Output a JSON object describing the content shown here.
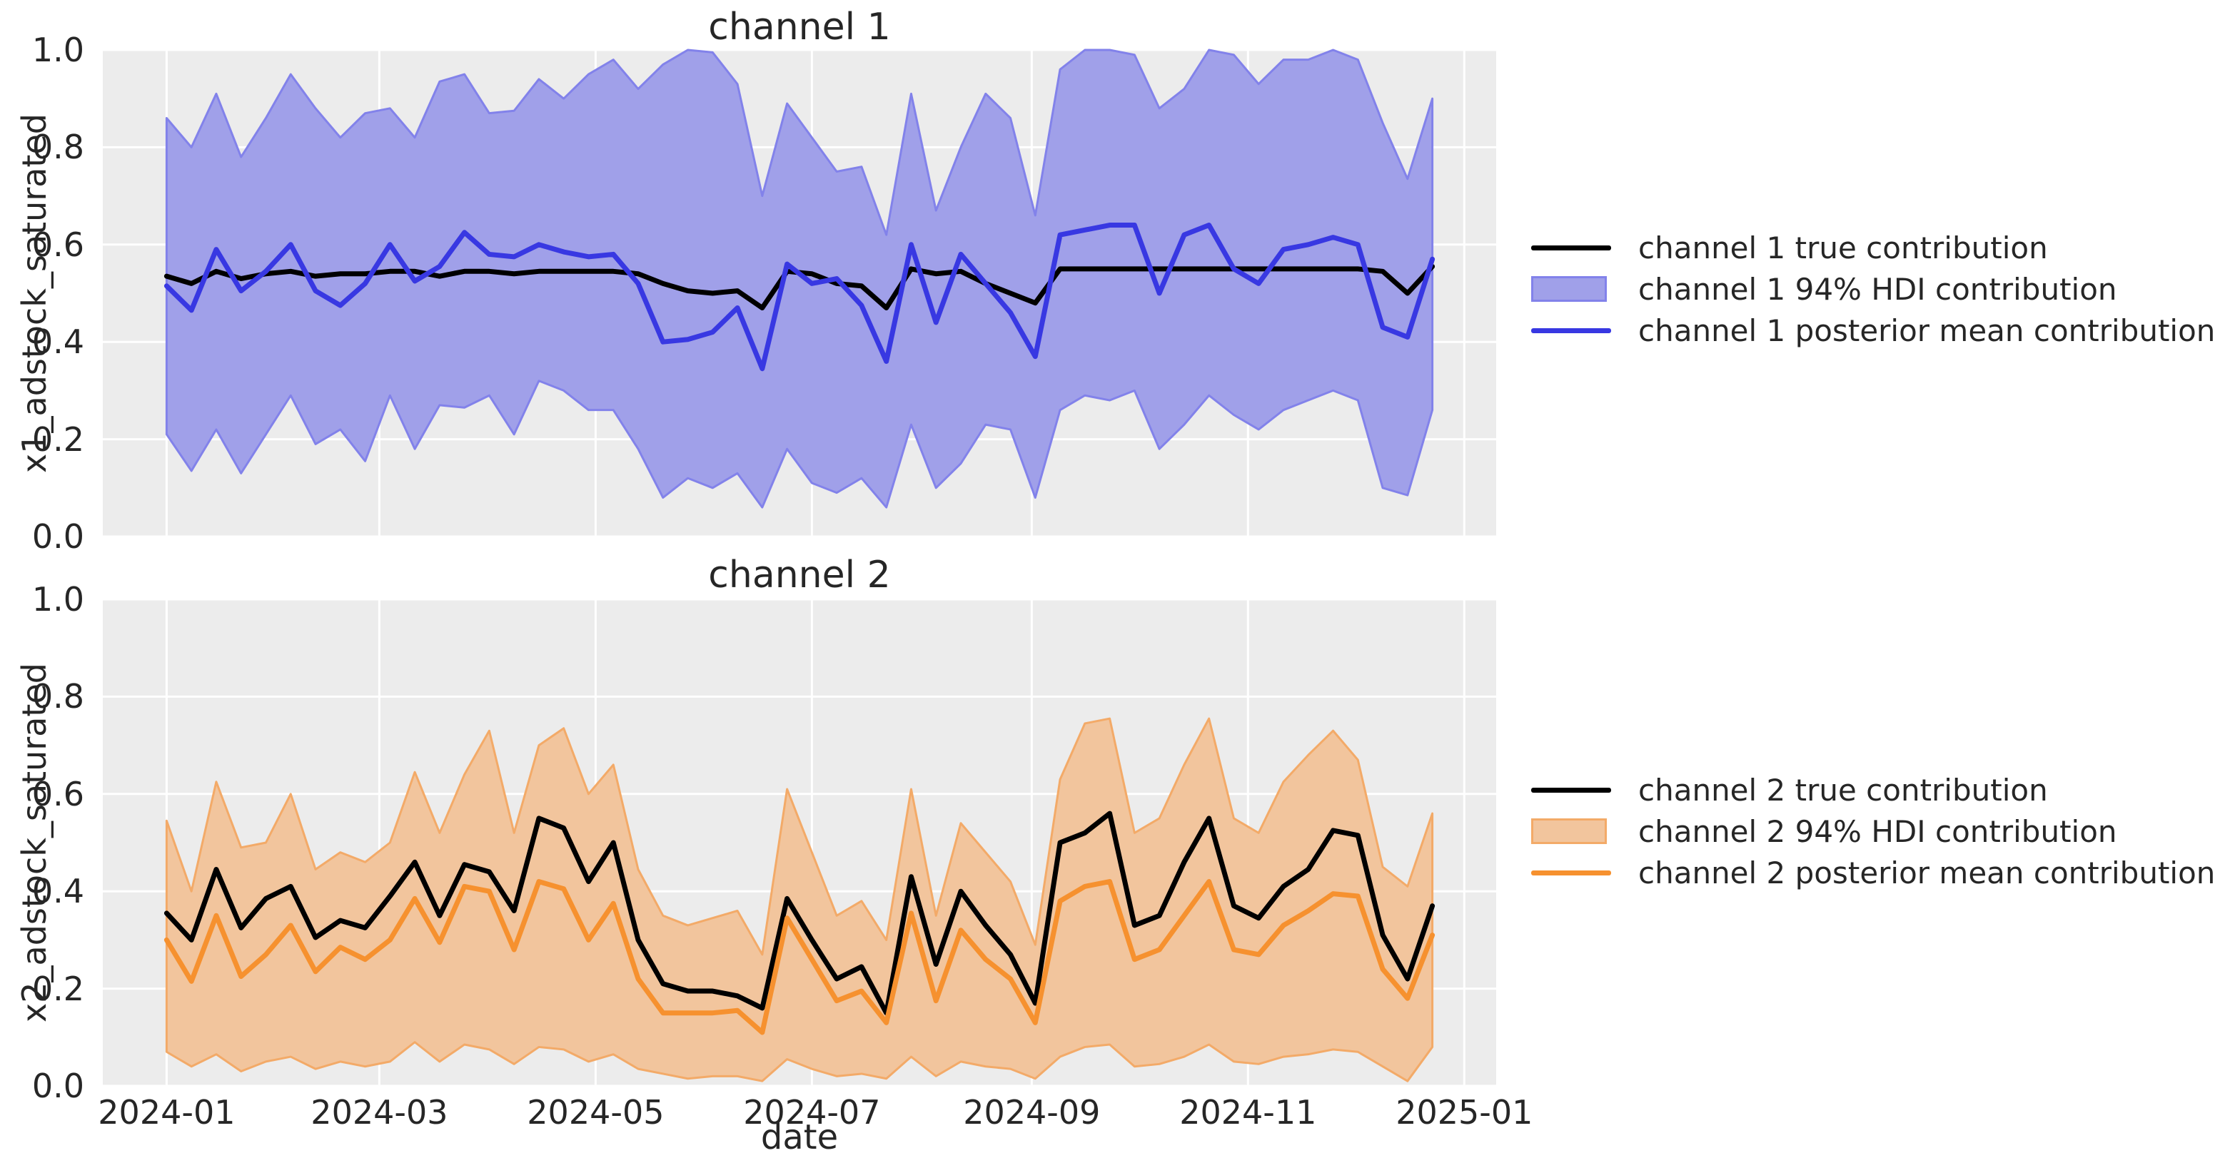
{
  "xlabel": "date",
  "y_tick_values": [
    0.0,
    0.2,
    0.4,
    0.6,
    0.8,
    1.0
  ],
  "colors": {
    "figure_background": "#ffffff",
    "axes_background": "#ececec",
    "grid": "#ffffff",
    "text": "#262626",
    "true_line": "#000000",
    "channel1_line": "#3838e2",
    "channel1_band_fill": "#a0a0e9",
    "channel1_band_edge": "#8282ea",
    "channel2_line": "#f6912f",
    "channel2_band_fill": "#f2c59d",
    "channel2_band_edge": "#f3aa68"
  },
  "chart_data": [
    {
      "type": "line",
      "title": "channel 1",
      "ylabel": "x1_adstock_saturated",
      "xlabel": "",
      "ylim": [
        0.0,
        1.0
      ],
      "grid": true,
      "legend_position": "right",
      "x_start": "2024-01-01",
      "x_step_days": 7,
      "n_points": 52,
      "x_tick_labels": [
        "2024-01",
        "2024-03",
        "2024-05",
        "2024-07",
        "2024-09",
        "2024-11",
        "2025-01"
      ],
      "show_x_tick_labels": false,
      "series": [
        {
          "name": "channel 1 true contribution",
          "kind": "line",
          "color": "#000000",
          "values": [
            0.535,
            0.52,
            0.545,
            0.53,
            0.54,
            0.545,
            0.535,
            0.54,
            0.54,
            0.545,
            0.545,
            0.535,
            0.545,
            0.545,
            0.54,
            0.545,
            0.545,
            0.545,
            0.545,
            0.54,
            0.52,
            0.505,
            0.5,
            0.505,
            0.47,
            0.545,
            0.54,
            0.52,
            0.515,
            0.47,
            0.55,
            0.54,
            0.545,
            0.52,
            0.5,
            0.48,
            0.55,
            0.55,
            0.55,
            0.55,
            0.55,
            0.55,
            0.55,
            0.55,
            0.55,
            0.55,
            0.55,
            0.55,
            0.55,
            0.545,
            0.5,
            0.555
          ]
        },
        {
          "name": "channel 1 94% HDI contribution",
          "kind": "band",
          "fill": "#a0a0e9",
          "edge": "#8282ea",
          "lower": [
            0.21,
            0.135,
            0.22,
            0.13,
            0.21,
            0.29,
            0.19,
            0.22,
            0.155,
            0.29,
            0.18,
            0.27,
            0.265,
            0.29,
            0.21,
            0.32,
            0.3,
            0.26,
            0.26,
            0.18,
            0.08,
            0.12,
            0.1,
            0.13,
            0.06,
            0.18,
            0.11,
            0.09,
            0.12,
            0.06,
            0.23,
            0.1,
            0.15,
            0.23,
            0.22,
            0.08,
            0.26,
            0.29,
            0.28,
            0.3,
            0.18,
            0.23,
            0.29,
            0.25,
            0.22,
            0.26,
            0.28,
            0.3,
            0.28,
            0.1,
            0.085,
            0.26
          ],
          "upper": [
            0.86,
            0.8,
            0.91,
            0.78,
            0.86,
            0.95,
            0.88,
            0.82,
            0.87,
            0.88,
            0.82,
            0.935,
            0.95,
            0.87,
            0.875,
            0.94,
            0.9,
            0.95,
            0.98,
            0.92,
            0.97,
            1.0,
            0.995,
            0.93,
            0.7,
            0.89,
            0.82,
            0.75,
            0.76,
            0.62,
            0.91,
            0.67,
            0.8,
            0.91,
            0.86,
            0.66,
            0.96,
            1.0,
            1.0,
            0.99,
            0.88,
            0.92,
            1.0,
            0.99,
            0.93,
            0.98,
            0.98,
            1.0,
            0.98,
            0.85,
            0.735,
            0.9
          ]
        },
        {
          "name": "channel 1 posterior mean contribution",
          "kind": "line",
          "color": "#3838e2",
          "values": [
            0.515,
            0.465,
            0.59,
            0.505,
            0.545,
            0.6,
            0.505,
            0.475,
            0.52,
            0.6,
            0.525,
            0.555,
            0.625,
            0.58,
            0.575,
            0.6,
            0.585,
            0.575,
            0.58,
            0.52,
            0.4,
            0.405,
            0.42,
            0.47,
            0.345,
            0.56,
            0.52,
            0.53,
            0.475,
            0.36,
            0.6,
            0.44,
            0.58,
            0.52,
            0.46,
            0.37,
            0.62,
            0.63,
            0.64,
            0.64,
            0.5,
            0.62,
            0.64,
            0.55,
            0.52,
            0.59,
            0.6,
            0.615,
            0.6,
            0.43,
            0.41,
            0.57
          ]
        }
      ]
    },
    {
      "type": "line",
      "title": "channel 2",
      "ylabel": "x2_adstock_saturated",
      "xlabel": "date",
      "ylim": [
        0.0,
        1.0
      ],
      "grid": true,
      "legend_position": "right",
      "x_start": "2024-01-01",
      "x_step_days": 7,
      "n_points": 52,
      "x_tick_labels": [
        "2024-01",
        "2024-03",
        "2024-05",
        "2024-07",
        "2024-09",
        "2024-11",
        "2025-01"
      ],
      "show_x_tick_labels": true,
      "series": [
        {
          "name": "channel 2 true contribution",
          "kind": "line",
          "color": "#000000",
          "values": [
            0.355,
            0.3,
            0.445,
            0.325,
            0.385,
            0.41,
            0.305,
            0.34,
            0.325,
            0.39,
            0.46,
            0.35,
            0.455,
            0.44,
            0.36,
            0.55,
            0.53,
            0.42,
            0.5,
            0.3,
            0.21,
            0.195,
            0.195,
            0.185,
            0.16,
            0.385,
            0.3,
            0.22,
            0.245,
            0.15,
            0.43,
            0.25,
            0.4,
            0.33,
            0.27,
            0.17,
            0.5,
            0.52,
            0.56,
            0.33,
            0.35,
            0.46,
            0.55,
            0.37,
            0.345,
            0.41,
            0.445,
            0.525,
            0.515,
            0.31,
            0.22,
            0.37
          ]
        },
        {
          "name": "channel 2 94% HDI contribution",
          "kind": "band",
          "fill": "#f2c59d",
          "edge": "#f3aa68",
          "lower": [
            0.07,
            0.04,
            0.065,
            0.03,
            0.05,
            0.06,
            0.035,
            0.05,
            0.04,
            0.05,
            0.09,
            0.05,
            0.085,
            0.075,
            0.045,
            0.08,
            0.075,
            0.05,
            0.065,
            0.035,
            0.025,
            0.015,
            0.02,
            0.02,
            0.01,
            0.055,
            0.035,
            0.02,
            0.025,
            0.015,
            0.06,
            0.02,
            0.05,
            0.04,
            0.035,
            0.015,
            0.06,
            0.08,
            0.085,
            0.04,
            0.045,
            0.06,
            0.085,
            0.05,
            0.045,
            0.06,
            0.065,
            0.075,
            0.07,
            0.04,
            0.01,
            0.08
          ],
          "upper": [
            0.545,
            0.4,
            0.625,
            0.49,
            0.5,
            0.6,
            0.445,
            0.48,
            0.46,
            0.5,
            0.645,
            0.52,
            0.64,
            0.73,
            0.52,
            0.7,
            0.735,
            0.6,
            0.66,
            0.445,
            0.35,
            0.33,
            0.345,
            0.36,
            0.27,
            0.61,
            0.48,
            0.35,
            0.38,
            0.3,
            0.61,
            0.35,
            0.54,
            0.48,
            0.42,
            0.29,
            0.63,
            0.745,
            0.755,
            0.52,
            0.55,
            0.66,
            0.755,
            0.55,
            0.52,
            0.625,
            0.68,
            0.73,
            0.67,
            0.45,
            0.41,
            0.56
          ]
        },
        {
          "name": "channel 2 posterior mean contribution",
          "kind": "line",
          "color": "#f6912f",
          "values": [
            0.3,
            0.215,
            0.35,
            0.225,
            0.27,
            0.33,
            0.235,
            0.285,
            0.26,
            0.3,
            0.385,
            0.295,
            0.41,
            0.4,
            0.28,
            0.42,
            0.405,
            0.3,
            0.375,
            0.22,
            0.15,
            0.15,
            0.15,
            0.155,
            0.11,
            0.345,
            0.26,
            0.175,
            0.195,
            0.13,
            0.355,
            0.175,
            0.32,
            0.26,
            0.22,
            0.13,
            0.38,
            0.41,
            0.42,
            0.26,
            0.28,
            0.35,
            0.42,
            0.28,
            0.27,
            0.33,
            0.36,
            0.395,
            0.39,
            0.24,
            0.18,
            0.31
          ]
        }
      ]
    }
  ]
}
